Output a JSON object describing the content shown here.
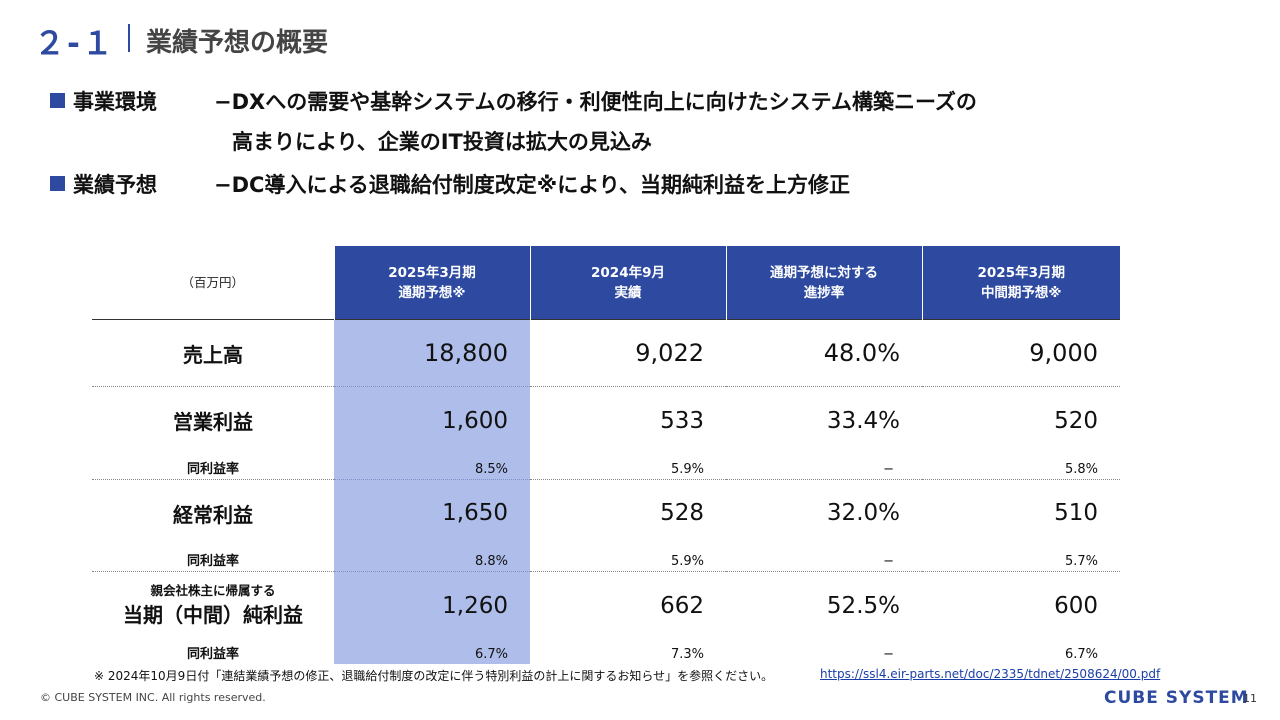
{
  "header": {
    "number": "２-１",
    "title": "業績予想の概要"
  },
  "bullets": [
    {
      "label": "事業環境",
      "text_line1": "−DXへの需要や基幹システムの移行・利便性向上に向けたシステム構築ニーズの",
      "text_line2": "高まりにより、企業のIT投資は拡大の見込み"
    },
    {
      "label": "業績予想",
      "text": "−DC導入による退職給付制度改定※により、当期純利益を上方修正"
    }
  ],
  "table": {
    "unit": "（百万円）",
    "columns": [
      {
        "line1": "2025年3月期",
        "line2": "通期予想※"
      },
      {
        "line1": "2024年9月",
        "line2": "実績"
      },
      {
        "line1": "通期予想に対する",
        "line2": "進捗率"
      },
      {
        "line1": "2025年3月期",
        "line2": "中間期予想※"
      }
    ],
    "rows": [
      {
        "name": "売上高",
        "values": [
          "18,800",
          "9,022",
          "48.0%",
          "9,000"
        ]
      },
      {
        "name": "営業利益",
        "values": [
          "1,600",
          "533",
          "33.4%",
          "520"
        ],
        "sub": {
          "name": "同利益率",
          "values": [
            "8.5%",
            "5.9%",
            "−",
            "5.8%"
          ]
        }
      },
      {
        "name": "経常利益",
        "values": [
          "1,650",
          "528",
          "32.0%",
          "510"
        ],
        "sub": {
          "name": "同利益率",
          "values": [
            "8.8%",
            "5.9%",
            "−",
            "5.7%"
          ]
        }
      },
      {
        "name_small": "親会社株主に帰属する",
        "name": "当期（中間）純利益",
        "values": [
          "1,260",
          "662",
          "52.5%",
          "600"
        ],
        "sub": {
          "name": "同利益率",
          "values": [
            "6.7%",
            "7.3%",
            "−",
            "6.7%"
          ]
        }
      }
    ]
  },
  "footnote": "※ 2024年10月9日付「連結業績予想の修正、退職給付制度の改定に伴う特別利益の計上に関するお知らせ」を参照ください。",
  "link": "https://ssl4.eir-parts.net/doc/2335/tdnet/2508624/00.pdf",
  "copyright": "© CUBE SYSTEM INC. All rights reserved.",
  "logo": "CUBE SYSTEM",
  "page_number": "11",
  "colors": {
    "accent": "#2d4aa0",
    "highlight_column": "#aebde9"
  }
}
